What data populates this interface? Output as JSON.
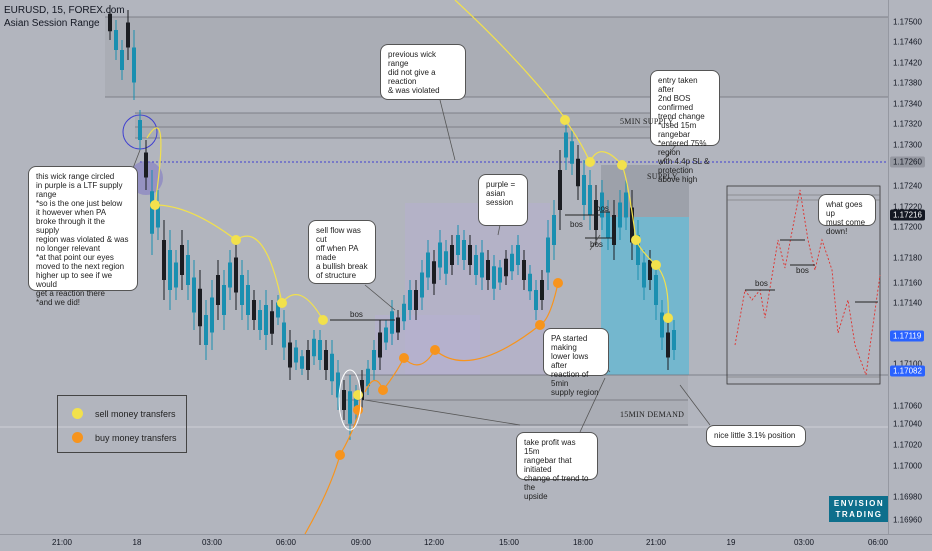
{
  "header": {
    "symbol_line": "EURUSD, 15, FOREX.com",
    "indicator": "Asian Session Range"
  },
  "price_axis": {
    "labels": [
      "1.17500",
      "1.17460",
      "1.17420",
      "1.17380",
      "1.17340",
      "1.17320",
      "1.17300",
      "1.17240",
      "1.17220",
      "1.17200",
      "1.17180",
      "1.17160",
      "1.17140",
      "1.17100",
      "1.17060",
      "1.17040",
      "1.17020",
      "1.17000",
      "1.16980",
      "1.16960"
    ],
    "tags": [
      {
        "text": "1.17260",
        "bg": "#9598a1",
        "fg": "#131722"
      },
      {
        "text": "1.17216",
        "bg": "#131722",
        "fg": "#ffffff"
      },
      {
        "text": "1.17119",
        "bg": "#2962ff",
        "fg": "#ffffff"
      },
      {
        "text": "1.17082",
        "bg": "#2962ff",
        "fg": "#ffffff"
      }
    ]
  },
  "time_axis": {
    "labels": [
      "21:00",
      "18",
      "03:00",
      "06:00",
      "09:00",
      "12:00",
      "15:00",
      "18:00",
      "21:00",
      "19",
      "03:00",
      "06:00"
    ]
  },
  "annotations": {
    "wick_range": "this wick range circled\nin purple is a LTF supply\nrange\n*so is the one just below\nit however when PA\nbroke through it the supply\nregion was violated & was\nno longer relevant\n*at that point our eyes\nmoved to the next region\nhigher up to see if we would\nget a reaction there\n*and we did!",
    "previous_wick": "previous wick range\ndid not give a reaction\n& was violated",
    "sell_flow": "sell flow was cut\noff when PA made\na bullish break\nof structure",
    "purple_asian": "purple =\nasian session",
    "entry_taken": "entry taken after\n2nd BOS confirmed\ntrend change\n*used 15m rangebar\n*entered 75% region\nwith 4.4p SL &\nprotection above high",
    "pa_lower_lows": "PA started making\nlower lows after\nreaction of 5min\nsupply region",
    "take_profit": "take profit was 15m\nrangebar that initiated\nchange of trend to the\nupside",
    "nice_position": "nice little 3.1% position",
    "what_goes_up": "what goes up\nmust come down!"
  },
  "labels": {
    "bos_1": "bos",
    "bos_2": "bos",
    "bos_3": "bos",
    "bos_4": "bos",
    "bos_inset_1": "bos",
    "bos_inset_2": "bos",
    "supply_5min": "5MIN SUPPLY",
    "supply": "SUPPLY",
    "demand_15min": "15MIN DEMAND"
  },
  "legend": {
    "sell": {
      "label": "sell money transfers",
      "color": "#f2e14c"
    },
    "buy": {
      "label": "buy money transfers",
      "color": "#f7941d"
    }
  },
  "brand": {
    "line1": "ENVISION",
    "line2": "TRADING"
  },
  "colors": {
    "background": "#b2b5be",
    "bull_candle": "#1a8fb0",
    "bear_candle": "#1b1d22",
    "asian_session": "#b6afd2",
    "position_zone": "#5fb8d3",
    "sell_flow": "#f2e14c",
    "buy_flow": "#f7941d",
    "inset_dashes": "#e0302c"
  }
}
